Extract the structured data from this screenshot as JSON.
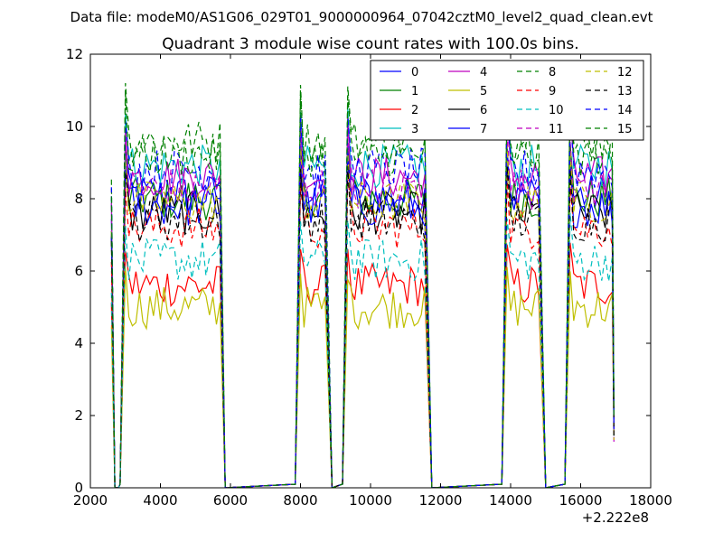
{
  "chart_data": {
    "type": "line",
    "suptitle": "Data file: modeM0/AS1G06_029T01_9000000964_07042cztM0_level2_quad_clean.evt",
    "title": "Quadrant 3 module wise count rates with 100.0s bins.",
    "xlabel": "",
    "ylabel": "",
    "xlim": [
      2000,
      18000
    ],
    "ylim": [
      0,
      12
    ],
    "x_offset_label": "+2.222e8",
    "xticks": [
      2000,
      4000,
      6000,
      8000,
      10000,
      12000,
      14000,
      16000,
      18000
    ],
    "yticks": [
      0,
      2,
      4,
      6,
      8,
      10,
      12
    ],
    "grid": false,
    "legend_position": "top-right",
    "legend_columns": 4,
    "segments": [
      {
        "start": 3000,
        "end": 5700
      },
      {
        "start": 8000,
        "end": 8750
      },
      {
        "start": 9350,
        "end": 11600
      },
      {
        "start": 13900,
        "end": 14850
      },
      {
        "start": 15700,
        "end": 16950
      }
    ],
    "series": [
      {
        "name": "0",
        "color": "#0000ff",
        "dash": "solid",
        "level": 8.1
      },
      {
        "name": "1",
        "color": "#008000",
        "dash": "solid",
        "level": 8.0
      },
      {
        "name": "2",
        "color": "#ff0000",
        "dash": "solid",
        "level": 5.6
      },
      {
        "name": "3",
        "color": "#00bfbf",
        "dash": "solid",
        "level": 8.9
      },
      {
        "name": "4",
        "color": "#bf00bf",
        "dash": "solid",
        "level": 8.6
      },
      {
        "name": "5",
        "color": "#bfbf00",
        "dash": "solid",
        "level": 5.0
      },
      {
        "name": "6",
        "color": "#000000",
        "dash": "solid",
        "level": 7.6
      },
      {
        "name": "7",
        "color": "#0000ff",
        "dash": "solid",
        "level": 7.8
      },
      {
        "name": "8",
        "color": "#008000",
        "dash": "dashed",
        "level": 9.6
      },
      {
        "name": "9",
        "color": "#ff0000",
        "dash": "dashed",
        "level": 7.2
      },
      {
        "name": "10",
        "color": "#00bfbf",
        "dash": "dashed",
        "level": 6.3
      },
      {
        "name": "11",
        "color": "#bf00bf",
        "dash": "dashed",
        "level": 8.3
      },
      {
        "name": "12",
        "color": "#bfbf00",
        "dash": "dashed",
        "level": 7.9
      },
      {
        "name": "13",
        "color": "#000000",
        "dash": "dashed",
        "level": 7.4
      },
      {
        "name": "14",
        "color": "#0000ff",
        "dash": "dashed",
        "level": 8.8
      },
      {
        "name": "15",
        "color": "#008000",
        "dash": "dashed",
        "level": 9.2
      }
    ]
  }
}
